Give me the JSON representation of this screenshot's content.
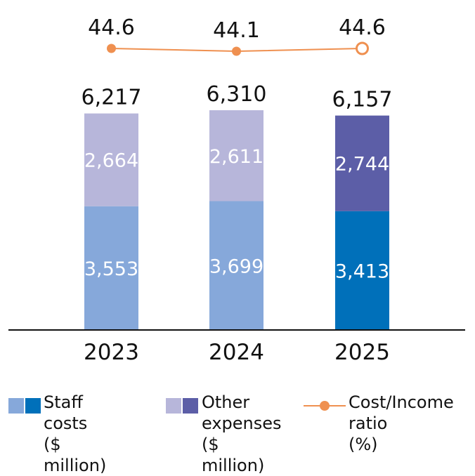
{
  "chart_data": {
    "type": "bar",
    "stacked": true,
    "categories": [
      "2023",
      "2024",
      "2025"
    ],
    "series": [
      {
        "name": "Staff costs ($ million)",
        "values": [
          3553,
          3699,
          3413
        ],
        "colors": [
          "#86a8da",
          "#86a8da",
          "#0070ba"
        ]
      },
      {
        "name": "Other expenses ($ million)",
        "values": [
          2664,
          2611,
          2744
        ],
        "colors": [
          "#b7b6da",
          "#b7b6da",
          "#5c5ea7"
        ]
      }
    ],
    "totals": [
      6217,
      6310,
      6157
    ],
    "totals_labels": [
      "6,217",
      "6,310",
      "6,157"
    ],
    "segment_labels": {
      "staff": [
        "3,553",
        "3,699",
        "3,413"
      ],
      "other": [
        "2,664",
        "2,611",
        "2,744"
      ]
    },
    "line_series": {
      "name": "Cost/Income ratio (%)",
      "values": [
        44.6,
        44.1,
        44.6
      ],
      "labels": [
        "44.6",
        "44.1",
        "44.6"
      ],
      "color": "#ef9050",
      "last_point_hollow": true
    },
    "title": "",
    "xlabel": "",
    "ylabel": "",
    "ylim": [
      0,
      6310
    ],
    "grid": false,
    "legend_position": "bottom"
  },
  "legend": {
    "staff": {
      "label": "Staff costs\n($ million)",
      "colors": [
        "#86a8da",
        "#0070ba"
      ]
    },
    "other": {
      "label": "Other\nexpenses\n($ million)",
      "colors": [
        "#b7b6da",
        "#5c5ea7"
      ]
    },
    "ratio": {
      "label": "Cost/Income\nratio\n(%)",
      "color": "#ef9050"
    }
  }
}
